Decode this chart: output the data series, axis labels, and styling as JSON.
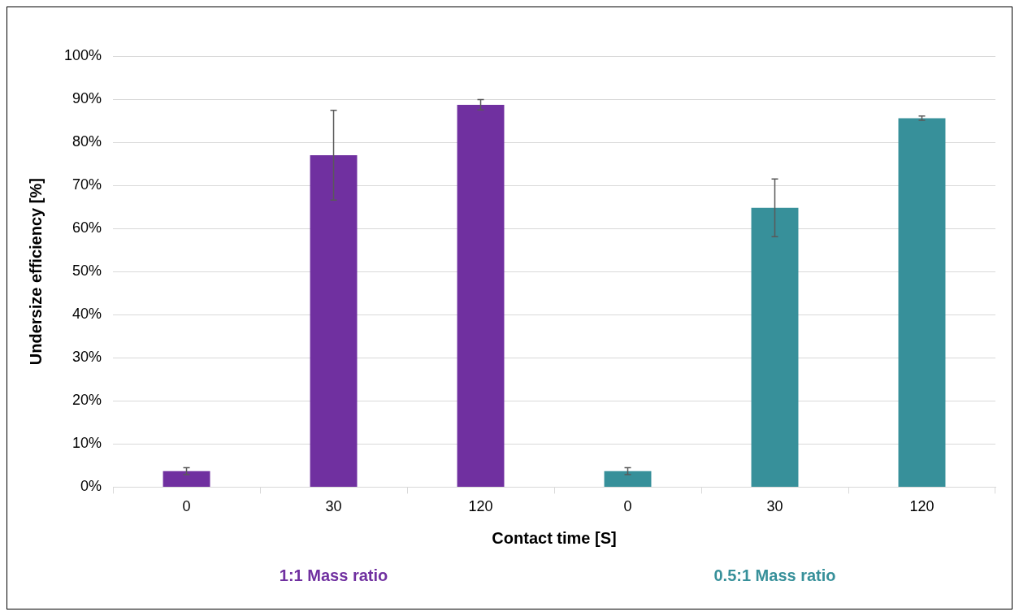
{
  "chart_data": {
    "type": "bar",
    "xlabel": "Contact time [S]",
    "ylabel": "Undersize efficiency [%]",
    "categories": [
      "0",
      "30",
      "120",
      "0",
      "30",
      "120"
    ],
    "series": [
      {
        "name": "1:1 Mass ratio",
        "color": "#7030a0",
        "values": [
          3.7,
          77.0,
          88.7,
          null,
          null,
          null
        ],
        "errors": [
          0.8,
          10.4,
          1.2,
          null,
          null,
          null
        ]
      },
      {
        "name": "0.5:1 Mass ratio",
        "color": "#37909a",
        "values": [
          null,
          null,
          null,
          3.7,
          64.8,
          85.6
        ],
        "errors": [
          null,
          null,
          null,
          0.8,
          6.7,
          0.5
        ]
      }
    ],
    "ylim": [
      0,
      100
    ],
    "yticks": [
      {
        "value": 0,
        "label": "0%"
      },
      {
        "value": 10,
        "label": "10%"
      },
      {
        "value": 20,
        "label": "20%"
      },
      {
        "value": 30,
        "label": "30%"
      },
      {
        "value": 40,
        "label": "40%"
      },
      {
        "value": 50,
        "label": "50%"
      },
      {
        "value": 60,
        "label": "60%"
      },
      {
        "value": 70,
        "label": "70%"
      },
      {
        "value": 80,
        "label": "80%"
      },
      {
        "value": 90,
        "label": "90%"
      },
      {
        "value": 100,
        "label": "100%"
      }
    ],
    "grid": "y",
    "legend": false
  }
}
